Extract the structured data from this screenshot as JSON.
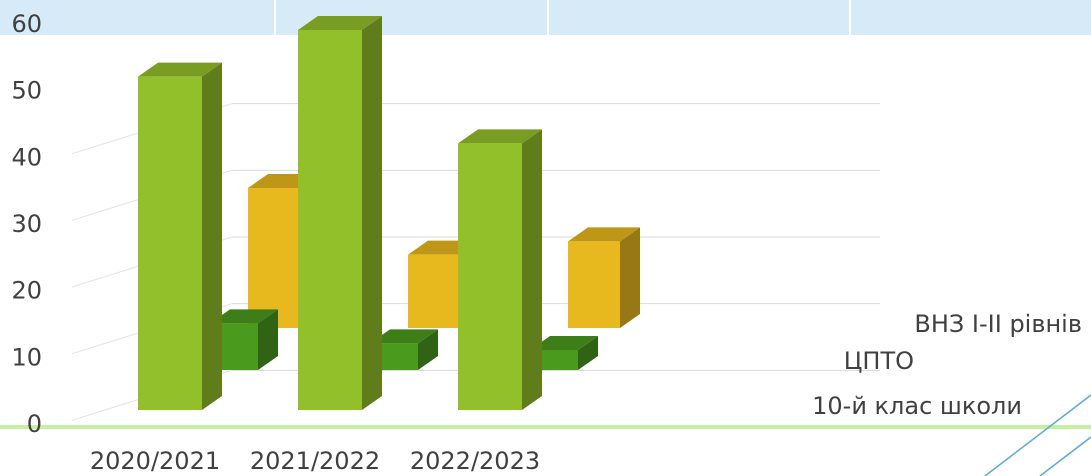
{
  "chart_data": {
    "type": "bar3d",
    "categories": [
      "2020/2021",
      "2021/2022",
      "2022/2023"
    ],
    "series": [
      {
        "name": "ВНЗ I-II рівнів",
        "color": "#e8b81f",
        "values": [
          21,
          11,
          13
        ]
      },
      {
        "name": "ЦПТО",
        "color": "#4a9a1e",
        "values": [
          7,
          4,
          3
        ]
      },
      {
        "name": "10-й клас школи",
        "color": "#92c02a",
        "values": [
          50,
          57,
          40
        ]
      }
    ],
    "ylim": [
      0,
      60
    ],
    "yticks": [
      0,
      10,
      20,
      30,
      40,
      50,
      60
    ],
    "grid": true
  }
}
